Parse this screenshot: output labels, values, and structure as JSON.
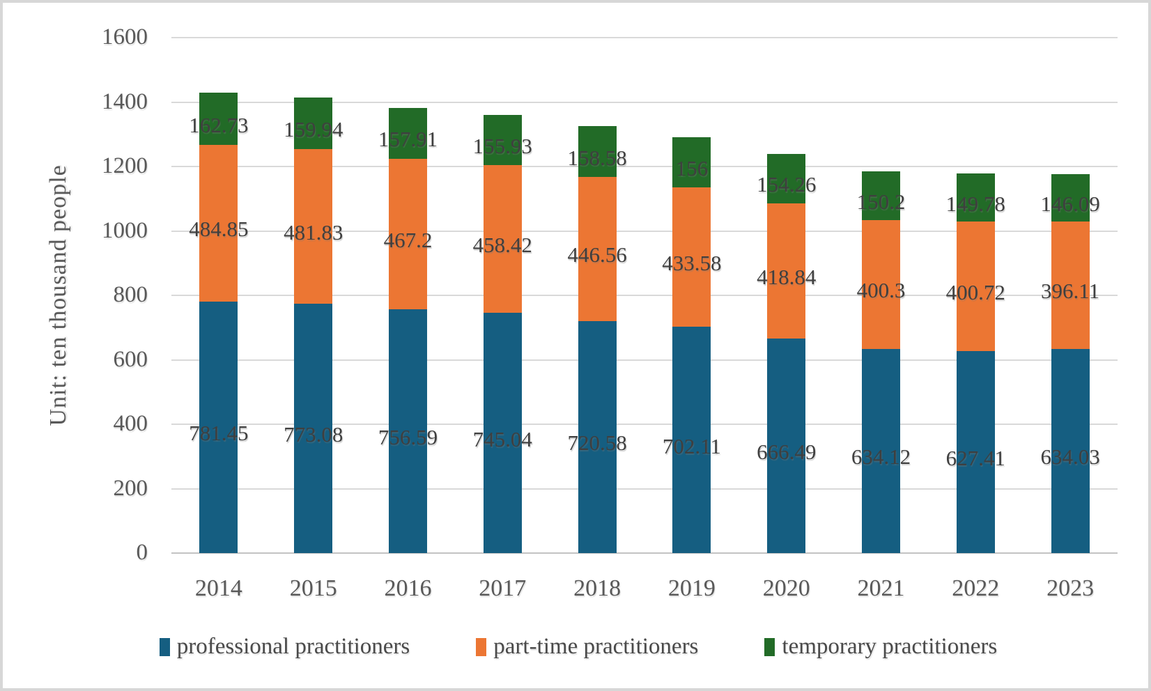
{
  "chart_data": {
    "type": "bar",
    "stacked": true,
    "title": "",
    "ylabel": "Unit: ten thousand people",
    "xlabel": "",
    "categories": [
      "2014",
      "2015",
      "2016",
      "2017",
      "2018",
      "2019",
      "2020",
      "2021",
      "2022",
      "2023"
    ],
    "series": [
      {
        "name": "professional practitioners",
        "color": "#155E81",
        "values": [
          781.45,
          773.08,
          756.59,
          745.04,
          720.58,
          702.11,
          666.49,
          634.12,
          627.41,
          634.03
        ]
      },
      {
        "name": "part-time practitioners",
        "color": "#EC7633",
        "values": [
          484.85,
          481.83,
          467.2,
          458.42,
          446.56,
          433.58,
          418.84,
          400.3,
          400.72,
          396.11
        ]
      },
      {
        "name": "temporary practitioners",
        "color": "#226B27",
        "values": [
          162.73,
          159.94,
          157.91,
          155.93,
          158.58,
          156,
          154.26,
          150.2,
          149.78,
          146.09
        ]
      }
    ],
    "ylim": [
      0,
      1600
    ],
    "yticks": [
      0,
      200,
      400,
      600,
      800,
      1000,
      1200,
      1400,
      1600
    ],
    "grid": true,
    "data_labels": true,
    "legend_position": "bottom",
    "colors": {
      "gridline": "#d9d9d9",
      "axis_text": "#595959",
      "data_label_text": "#3f3f3f"
    }
  }
}
